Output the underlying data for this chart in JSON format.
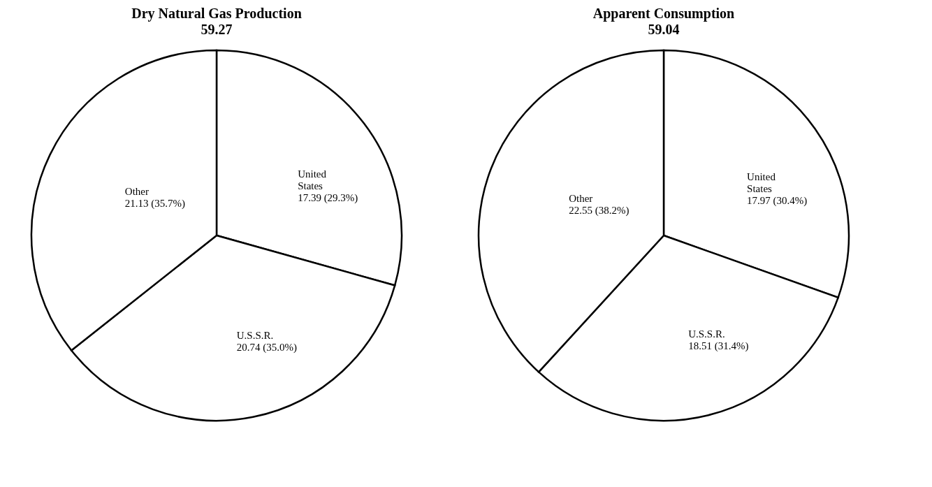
{
  "chart_data": [
    {
      "type": "pie",
      "title": "Dry Natural Gas Production",
      "subtitle": "59.27",
      "categories": [
        "United States",
        "U.S.S.R.",
        "Other"
      ],
      "values": [
        17.39,
        20.74,
        21.13
      ],
      "colors": [
        "#ffffff",
        "#ffffff",
        "#ffffff"
      ],
      "value_labels": [
        "17.39 (29.3%)",
        "20.74 (35.0%)",
        "21.13 (35.7%)"
      ],
      "legend": false
    },
    {
      "type": "pie",
      "title": "Apparent Consumption",
      "subtitle": "59.04",
      "categories": [
        "United States",
        "U.S.S.R.",
        "Other"
      ],
      "values": [
        17.97,
        18.51,
        22.55
      ],
      "colors": [
        "#ffffff",
        "#ffffff",
        "#ffffff"
      ],
      "value_labels": [
        "17.97 (30.4%)",
        "18.51 (31.4%)",
        "22.55 (38.2%)"
      ],
      "legend": false
    }
  ]
}
